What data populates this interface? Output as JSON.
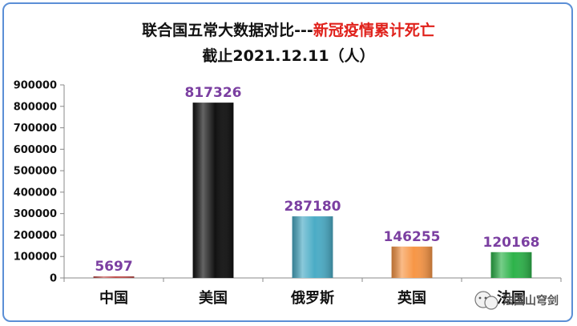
{
  "chart_data": {
    "type": "bar",
    "title": "联合国五常大数据对比---",
    "title_highlight": "新冠疫情累计死亡",
    "subtitle": "截止2021.12.11（人）",
    "categories": [
      "中国",
      "美国",
      "俄罗斯",
      "英国",
      "法国"
    ],
    "values": [
      5697,
      817326,
      287180,
      146255,
      120168
    ],
    "value_labels": [
      "5697",
      "817326",
      "287180",
      "146255",
      "120168"
    ],
    "colors": [
      "#c0504d",
      "#111111",
      "#4bacc6",
      "#f79646",
      "#2db34a"
    ],
    "ylim": [
      0,
      900000
    ],
    "yticks": [
      "0",
      "100000",
      "200000",
      "300000",
      "400000",
      "500000",
      "600000",
      "700000",
      "800000",
      "900000"
    ],
    "grid": false,
    "xlabel": "",
    "ylabel": ""
  },
  "watermark": {
    "text": "法国山穹剑",
    "icon": "wechat-icon"
  }
}
